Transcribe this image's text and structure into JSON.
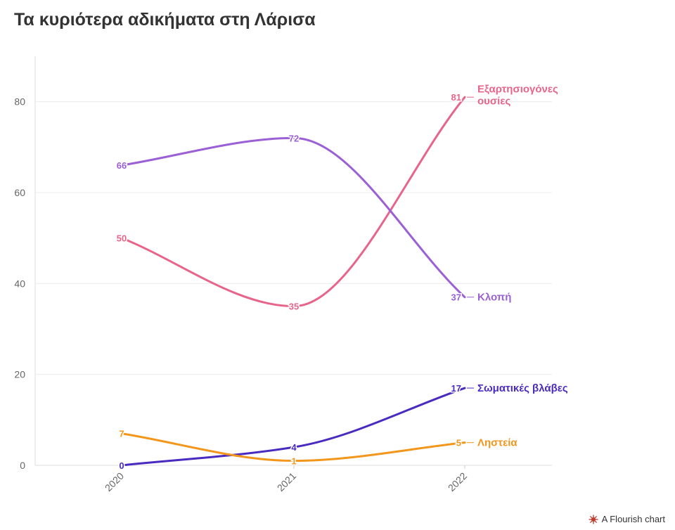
{
  "title": "Τα κυριότερα αδικήματα στη Λάρισα",
  "credit": "A Flourish chart",
  "chart_data": {
    "type": "line",
    "x": [
      "2020",
      "2021",
      "2022"
    ],
    "ylim": [
      0,
      90
    ],
    "yticks": [
      0,
      20,
      40,
      60,
      80
    ],
    "grid": true,
    "legend": "direct labels at line ends",
    "series": [
      {
        "name": "Εξαρτησιογόνες ουσίες",
        "name_lines": [
          "Εξαρτησιογόνες",
          "ουσίες"
        ],
        "values": [
          50,
          35,
          81
        ],
        "color": "#e8648a"
      },
      {
        "name": "Κλοπή",
        "name_lines": [
          "Κλοπή"
        ],
        "values": [
          66,
          72,
          37
        ],
        "color": "#9b5fd6"
      },
      {
        "name": "Σωματικές βλάβες",
        "name_lines": [
          "Σωματικές βλάβες"
        ],
        "values": [
          0,
          4,
          17
        ],
        "color": "#4a2bc0"
      },
      {
        "name": "Ληστεία",
        "name_lines": [
          "Ληστεία"
        ],
        "values": [
          7,
          1,
          5
        ],
        "color": "#f2961c"
      }
    ]
  }
}
